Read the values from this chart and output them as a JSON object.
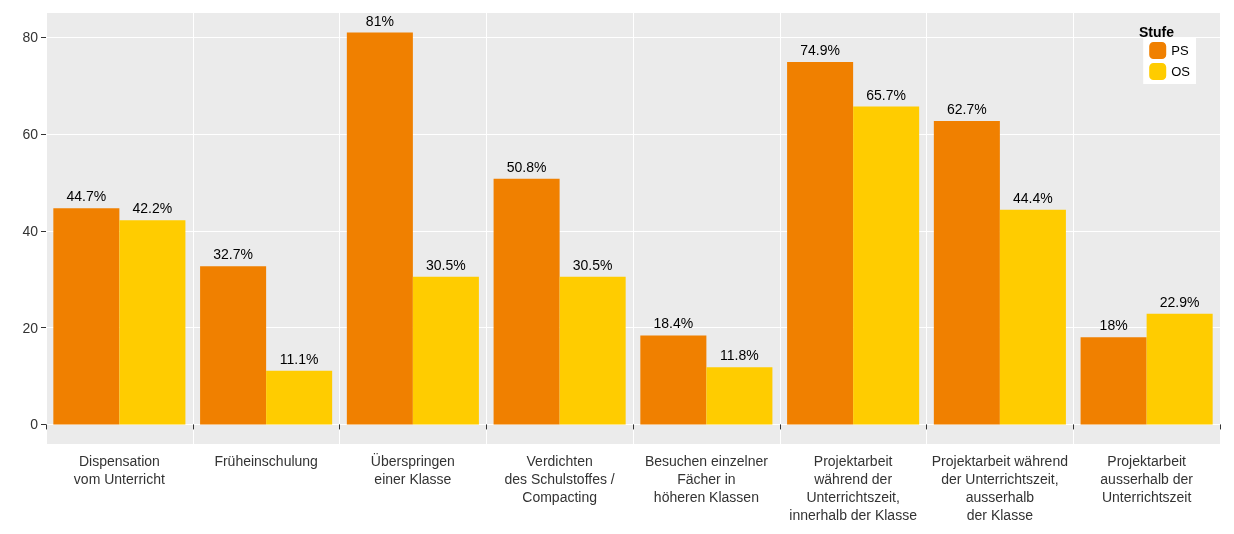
{
  "chart_data": {
    "type": "bar",
    "categories": [
      "Dispensation\nvom Unterricht",
      "Früheinschulung",
      "Überspringen\neiner Klasse",
      "Verdichten\ndes Schulstoffes /\nCompacting",
      "Besuchen einzelner\nFächer in\nhöheren Klassen",
      "Projektarbeit\nwährend der\nUnterrichtszeit,\ninnerhalb der Klasse",
      "Projektarbeit während\nder Unterrichtszeit,\nausserhalb\nder Klasse",
      "Projektarbeit\nausserhalb der\nUnterrichtszeit"
    ],
    "series": [
      {
        "name": "PS",
        "color": "#f08000",
        "values": [
          44.7,
          32.7,
          81,
          50.8,
          18.4,
          74.9,
          62.7,
          18
        ],
        "value_labels": [
          "44.7%",
          "32.7%",
          "81%",
          "50.8%",
          "18.4%",
          "74.9%",
          "62.7%",
          "18%"
        ]
      },
      {
        "name": "OS",
        "color": "#ffcc00",
        "values": [
          42.2,
          11.1,
          30.5,
          30.5,
          11.8,
          65.7,
          44.4,
          22.9
        ],
        "value_labels": [
          "42.2%",
          "11.1%",
          "30.5%",
          "30.5%",
          "11.8%",
          "65.7%",
          "44.4%",
          "22.9%"
        ]
      }
    ],
    "legend_title": "Stufe",
    "legend": "top right",
    "ylim": [
      -4.05,
      85.05
    ],
    "yticks": [
      0,
      20,
      40,
      60,
      80
    ],
    "grid": true
  }
}
